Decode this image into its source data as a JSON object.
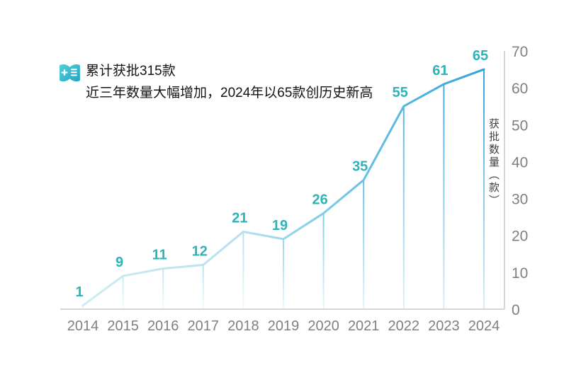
{
  "header": {
    "icon": "medical-report-icon",
    "title_line1": "累计获批315款",
    "title_line2": "近三年数量大幅增加，2024年以65款创历史新高"
  },
  "chart_data": {
    "type": "line",
    "categories": [
      "2014",
      "2015",
      "2016",
      "2017",
      "2018",
      "2019",
      "2020",
      "2021",
      "2022",
      "2023",
      "2024"
    ],
    "values": [
      1,
      9,
      11,
      12,
      21,
      19,
      26,
      35,
      55,
      61,
      65
    ],
    "title": "",
    "xlabel": "",
    "ylabel": "获批数量（款）",
    "ylim": [
      0,
      70
    ],
    "yticks": [
      0,
      10,
      20,
      30,
      40,
      50,
      60,
      70
    ],
    "grid": false,
    "legend": "none",
    "data_labels_shown": true,
    "colors": {
      "line_gradient": [
        {
          "off": 0,
          "c": "#cfecf3"
        },
        {
          "off": 0.4,
          "c": "#b5e2ed"
        },
        {
          "off": 0.7,
          "c": "#67c2e2"
        },
        {
          "off": 1,
          "c": "#35a2da"
        }
      ],
      "data_label": "#2fb3b8",
      "axis_line": "#d7d7d7",
      "tick_label": "#808080",
      "y_title": "#3f3f3f",
      "icon_teal_light": "#52cfd8",
      "icon_teal_dark": "#21a6c9"
    }
  }
}
